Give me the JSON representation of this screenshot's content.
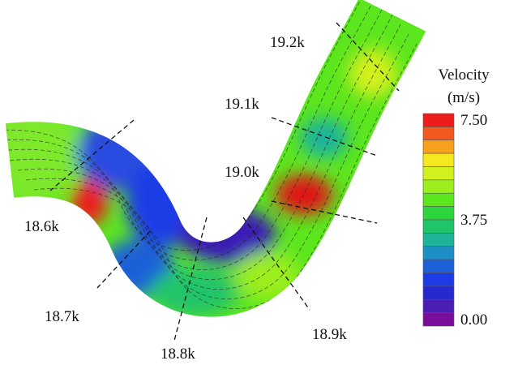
{
  "figure": {
    "cross_sections": [
      "18.6k",
      "18.7k",
      "18.8k",
      "18.9k",
      "19.0k",
      "19.1k",
      "19.2k"
    ],
    "legend": {
      "title": "Velocity",
      "unit": "(m/s)",
      "range": [
        0,
        7.5
      ],
      "ticks": [
        {
          "value": 7.5,
          "label": "7.50"
        },
        {
          "value": 3.75,
          "label": "3.75"
        },
        {
          "value": 0,
          "label": "0.00"
        }
      ],
      "colors": [
        "#ee1c1c",
        "#f05a1e",
        "#f6a11e",
        "#f6e81e",
        "#d2f01e",
        "#9cee1e",
        "#5ce61e",
        "#2ed43c",
        "#20c46a",
        "#1eb49a",
        "#1e8fc4",
        "#1e60d8",
        "#1e3ce6",
        "#2828d0",
        "#4a1eb4",
        "#7a0e9a"
      ]
    }
  }
}
